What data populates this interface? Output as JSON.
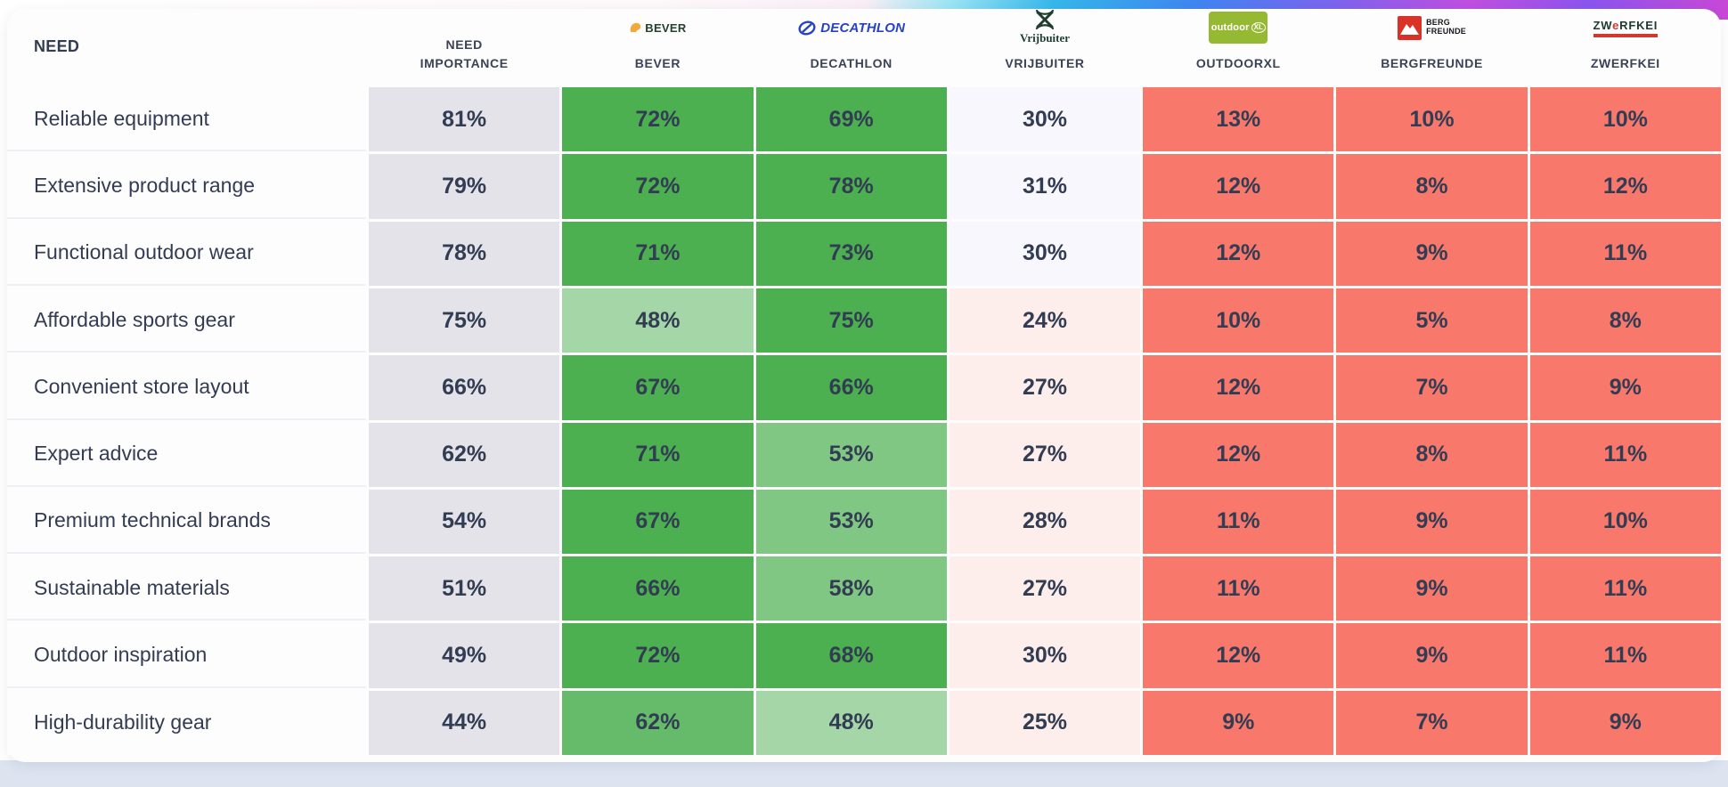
{
  "card": {
    "columns": {
      "need": "NEED",
      "importance": "NEED IMPORTANCE"
    },
    "brands": [
      {
        "label": "BEVER",
        "logo_text": "BEVER"
      },
      {
        "label": "DECATHLON",
        "logo_text": "DECATHLON"
      },
      {
        "label": "VRIJBUITER",
        "logo_text": "Vrijbuiter"
      },
      {
        "label": "OUTDOORXL",
        "logo_text": "outdoor",
        "logo_badge": "XL"
      },
      {
        "label": "BERGFREUNDE",
        "logo_line1": "BERG",
        "logo_line2": "FREUNDE"
      },
      {
        "label": "ZWERFKEI",
        "logo_part1": "ZW",
        "logo_e": "e",
        "logo_part2": "RFKEI"
      }
    ]
  },
  "chart_data": {
    "type": "heatmap",
    "row_header": "NEED",
    "columns": [
      "NEED IMPORTANCE",
      "BEVER",
      "DECATHLON",
      "VRIJBUITER",
      "OUTDOORXL",
      "BERGFREUNDE",
      "ZWERFKEI"
    ],
    "rows": [
      "Reliable equipment",
      "Extensive product range",
      "Functional outdoor wear",
      "Affordable sports gear",
      "Convenient store layout",
      "Expert advice",
      "Premium technical brands",
      "Sustainable materials",
      "Outdoor inspiration",
      "High-durability gear"
    ],
    "values_pct": [
      [
        81,
        72,
        69,
        30,
        13,
        10,
        10
      ],
      [
        79,
        72,
        78,
        31,
        12,
        8,
        12
      ],
      [
        78,
        71,
        73,
        30,
        12,
        9,
        11
      ],
      [
        75,
        48,
        75,
        24,
        10,
        5,
        8
      ],
      [
        66,
        67,
        66,
        27,
        12,
        7,
        9
      ],
      [
        62,
        71,
        53,
        27,
        12,
        8,
        11
      ],
      [
        54,
        67,
        53,
        28,
        11,
        9,
        10
      ],
      [
        51,
        66,
        58,
        27,
        11,
        9,
        11
      ],
      [
        49,
        72,
        68,
        30,
        12,
        9,
        11
      ],
      [
        44,
        62,
        48,
        25,
        9,
        7,
        9
      ]
    ],
    "cell_shades": [
      [
        "imp",
        "g3",
        "g3",
        "lav",
        "red",
        "red",
        "red"
      ],
      [
        "imp",
        "g3",
        "g3",
        "lav",
        "red",
        "red",
        "red"
      ],
      [
        "imp",
        "g3",
        "g3",
        "lav",
        "red",
        "red",
        "red"
      ],
      [
        "imp",
        "g1",
        "g3",
        "pink",
        "red",
        "red",
        "red"
      ],
      [
        "imp",
        "g3",
        "g3",
        "pink",
        "red",
        "red",
        "red"
      ],
      [
        "imp",
        "g3",
        "g2",
        "pink",
        "red",
        "red",
        "red"
      ],
      [
        "imp",
        "g3",
        "g2",
        "pink",
        "red",
        "red",
        "red"
      ],
      [
        "imp",
        "g3",
        "g2",
        "pink",
        "red",
        "red",
        "red"
      ],
      [
        "imp",
        "g3",
        "g3",
        "pink",
        "red",
        "red",
        "red"
      ],
      [
        "imp",
        "g25",
        "g1",
        "pink",
        "red",
        "red",
        "red"
      ]
    ],
    "palette": {
      "imp": "#e4e3ea",
      "g3": "#4caf50",
      "g25": "#66bb6a",
      "g2": "#81c784",
      "g1": "#a5d6a7",
      "lav": "#f7f7fd",
      "pink": "#fdeeeb",
      "red": "#f8796c"
    },
    "value_suffix": "%",
    "legend": "none",
    "grid": "white 3px gaps between cells"
  }
}
